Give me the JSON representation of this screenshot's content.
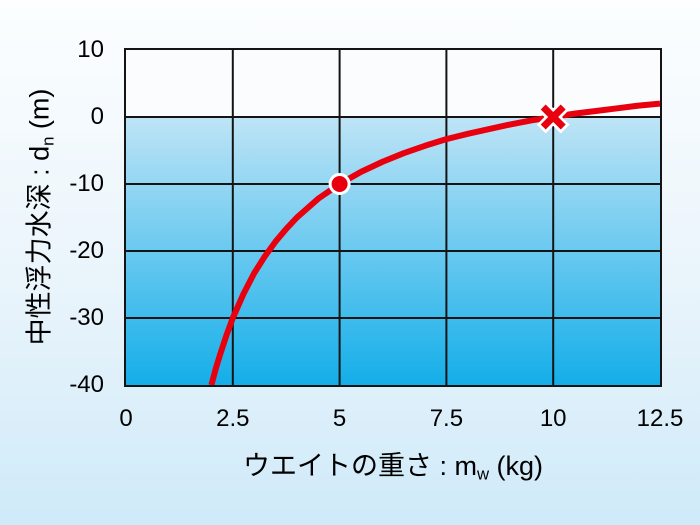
{
  "figure": {
    "background_top": "#fcfeff",
    "background_mid": "#e9f4fb",
    "background_bottom": "#cfeaf9"
  },
  "chart_data": {
    "type": "line",
    "title": "",
    "xlabel": {
      "prefix": "ウエイトの重さ : m",
      "sub": "w",
      "suffix": " (kg)"
    },
    "ylabel": {
      "prefix": "中性浮力水深 : d",
      "sub": "n",
      "suffix": " (m)"
    },
    "xlim": [
      0,
      12.5
    ],
    "ylim": [
      -40,
      10
    ],
    "x_ticks": {
      "values": [
        0,
        2.5,
        5,
        7.5,
        10,
        12.5
      ],
      "labels": [
        "0",
        "2.5",
        "5",
        "7.5",
        "10",
        "12.5"
      ]
    },
    "y_ticks": {
      "values": [
        10,
        0,
        -10,
        -20,
        -30,
        -40
      ],
      "labels": [
        "10",
        "0",
        "-10",
        "-20",
        "-30",
        "-40"
      ]
    },
    "grid": true,
    "legend": "none",
    "water_line_y": 0,
    "colors": {
      "curve": "#e8000f",
      "grid": "#141414",
      "air": "#fafcfe",
      "water_top": "#bfe4f6",
      "water_bottom": "#14aee9",
      "marker_outline": "#ffffff",
      "text": "#000000"
    },
    "series": [
      {
        "name": "neutral-buoyancy-depth-curve",
        "points": [
          [
            2.0,
            -40
          ],
          [
            2.1,
            -37.6
          ],
          [
            2.2,
            -35.5
          ],
          [
            2.35,
            -32.6
          ],
          [
            2.5,
            -30
          ],
          [
            2.75,
            -26.4
          ],
          [
            3.0,
            -23.3
          ],
          [
            3.25,
            -20.8
          ],
          [
            3.5,
            -18.6
          ],
          [
            3.75,
            -16.7
          ],
          [
            4.0,
            -15
          ],
          [
            4.5,
            -12.2
          ],
          [
            5.0,
            -10
          ],
          [
            5.5,
            -8.2
          ],
          [
            6.0,
            -6.7
          ],
          [
            6.5,
            -5.4
          ],
          [
            7.0,
            -4.3
          ],
          [
            7.5,
            -3.3
          ],
          [
            8.0,
            -2.5
          ],
          [
            8.5,
            -1.8
          ],
          [
            9.0,
            -1.1
          ],
          [
            9.5,
            -0.5
          ],
          [
            10.0,
            0
          ],
          [
            10.5,
            0.5
          ],
          [
            11.0,
            0.9
          ],
          [
            11.5,
            1.3
          ],
          [
            12.0,
            1.7
          ],
          [
            12.5,
            2.0
          ]
        ]
      }
    ],
    "markers": [
      {
        "shape": "circle",
        "x": 5,
        "y": -10
      },
      {
        "shape": "cross",
        "x": 10,
        "y": 0
      }
    ]
  }
}
